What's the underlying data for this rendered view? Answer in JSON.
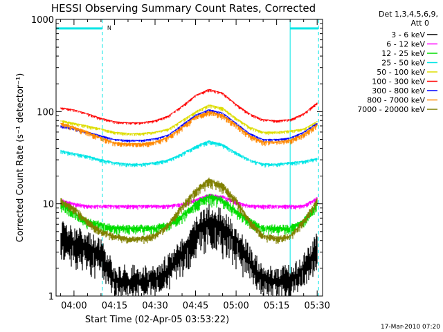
{
  "chart_data": {
    "type": "line",
    "title": "HESSI Observing Summary Count Rates, Corrected",
    "xlabel": "Start Time (02-Apr-05 03:53:22)",
    "ylabel": "Corrected Count Rate (s⁻¹ detector⁻¹)",
    "x_range": [
      "03:53:22",
      "05:32:00"
    ],
    "y_scale": "log",
    "ylim": [
      1,
      1000
    ],
    "x_ticks": [
      {
        "t": "04:00",
        "label": "04:00"
      },
      {
        "t": "04:15",
        "label": "04:15"
      },
      {
        "t": "04:30",
        "label": "04:30"
      },
      {
        "t": "04:45",
        "label": "04:45"
      },
      {
        "t": "05:00",
        "label": "05:00"
      },
      {
        "t": "05:15",
        "label": "05:15"
      },
      {
        "t": "05:30",
        "label": "05:30"
      }
    ],
    "y_ticks": [
      {
        "v": 1,
        "label": "1"
      },
      {
        "v": 10,
        "label": "10"
      },
      {
        "v": 100,
        "label": "100"
      },
      {
        "v": 1000,
        "label": "1000"
      }
    ],
    "legend_header": [
      "Det 1,3,4,5,6,9,",
      "Att 0"
    ],
    "legend_position": "right",
    "flag_label": "N",
    "flag_color": "#00e5e5",
    "night_bars": [
      {
        "start": "03:53:22",
        "end": "04:10:30"
      },
      {
        "start": "05:20:00",
        "end": "05:30:30"
      }
    ],
    "markers": [
      {
        "t": "04:10:30",
        "style": "dashed"
      },
      {
        "t": "05:20:00",
        "style": "solid"
      },
      {
        "t": "05:30:30",
        "style": "dashed"
      }
    ],
    "series": [
      {
        "name": "3 - 6 keV",
        "color": "#000000",
        "x": [
          "03:55",
          "04:00",
          "04:05",
          "04:10",
          "04:15",
          "04:20",
          "04:25",
          "04:30",
          "04:35",
          "04:40",
          "04:45",
          "04:50",
          "04:55",
          "05:00",
          "05:05",
          "05:10",
          "05:15",
          "05:20",
          "05:25",
          "05:30"
        ],
        "y": [
          4.5,
          4,
          3.5,
          3,
          1.5,
          1.5,
          1.5,
          1.5,
          2,
          3,
          5,
          7,
          6,
          4,
          2.5,
          1.5,
          1.5,
          1.5,
          2,
          3.5
        ]
      },
      {
        "name": "6 - 12 keV",
        "color": "#ff00ff",
        "x": [
          "03:55",
          "04:00",
          "04:05",
          "04:10",
          "04:15",
          "04:20",
          "04:25",
          "04:30",
          "04:35",
          "04:40",
          "04:45",
          "04:50",
          "04:55",
          "05:00",
          "05:05",
          "05:10",
          "05:15",
          "05:20",
          "05:25",
          "05:30"
        ],
        "y": [
          11,
          10,
          9.5,
          9.5,
          9.5,
          9.5,
          9.5,
          9.5,
          9.5,
          10,
          11,
          12.5,
          12,
          10.5,
          9.5,
          9.5,
          9.5,
          9.5,
          9.5,
          11.5
        ]
      },
      {
        "name": "12 - 25 keV",
        "color": "#00dd00",
        "x": [
          "03:55",
          "04:00",
          "04:05",
          "04:10",
          "04:15",
          "04:20",
          "04:25",
          "04:30",
          "04:35",
          "04:40",
          "04:45",
          "04:50",
          "04:55",
          "05:00",
          "05:05",
          "05:10",
          "05:15",
          "05:20",
          "05:25",
          "05:30"
        ],
        "y": [
          10,
          8,
          6.5,
          6,
          5.5,
          5.5,
          5.5,
          5.5,
          6,
          7.5,
          10,
          12,
          11,
          8.5,
          6.5,
          5.5,
          5.5,
          5.5,
          6.5,
          10
        ]
      },
      {
        "name": "25 - 50 keV",
        "color": "#00e5e5",
        "x": [
          "03:55",
          "04:00",
          "04:05",
          "04:10",
          "04:15",
          "04:20",
          "04:25",
          "04:30",
          "04:35",
          "04:40",
          "04:45",
          "04:50",
          "04:55",
          "05:00",
          "05:05",
          "05:10",
          "05:15",
          "05:20",
          "05:25",
          "05:30"
        ],
        "y": [
          38,
          35,
          33,
          30,
          28,
          27,
          27,
          28,
          30,
          35,
          42,
          48,
          44,
          36,
          30,
          27,
          27,
          28,
          29,
          31
        ]
      },
      {
        "name": "50 - 100 keV",
        "color": "#dddd00",
        "x": [
          "03:55",
          "04:00",
          "04:05",
          "04:10",
          "04:15",
          "04:20",
          "04:25",
          "04:30",
          "04:35",
          "04:40",
          "04:45",
          "04:50",
          "04:55",
          "05:00",
          "05:05",
          "05:10",
          "05:15",
          "05:20",
          "05:25",
          "05:30"
        ],
        "y": [
          80,
          75,
          70,
          65,
          60,
          58,
          58,
          60,
          65,
          80,
          100,
          118,
          110,
          85,
          68,
          60,
          60,
          62,
          65,
          78
        ]
      },
      {
        "name": "100 - 300 keV",
        "color": "#ff0000",
        "x": [
          "03:55",
          "04:00",
          "04:05",
          "04:10",
          "04:15",
          "04:20",
          "04:25",
          "04:30",
          "04:35",
          "04:40",
          "04:45",
          "04:50",
          "04:55",
          "05:00",
          "05:05",
          "05:10",
          "05:15",
          "05:20",
          "05:25",
          "05:30"
        ],
        "y": [
          110,
          105,
          95,
          85,
          78,
          76,
          76,
          80,
          90,
          115,
          150,
          175,
          160,
          120,
          95,
          82,
          80,
          82,
          95,
          125
        ]
      },
      {
        "name": "300 - 800 keV",
        "color": "#0000ff",
        "x": [
          "03:55",
          "04:00",
          "04:05",
          "04:10",
          "04:15",
          "04:20",
          "04:25",
          "04:30",
          "04:35",
          "04:40",
          "04:45",
          "04:50",
          "04:55",
          "05:00",
          "05:05",
          "05:10",
          "05:15",
          "05:20",
          "05:25",
          "05:30"
        ],
        "y": [
          70,
          65,
          60,
          55,
          50,
          49,
          49,
          51,
          56,
          72,
          92,
          105,
          97,
          75,
          58,
          50,
          50,
          52,
          60,
          75
        ]
      },
      {
        "name": "800 - 7000 keV",
        "color": "#ff8800",
        "x": [
          "03:55",
          "04:00",
          "04:05",
          "04:10",
          "04:15",
          "04:20",
          "04:25",
          "04:30",
          "04:35",
          "04:40",
          "04:45",
          "04:50",
          "04:55",
          "05:00",
          "05:05",
          "05:10",
          "05:15",
          "05:20",
          "05:25",
          "05:30"
        ],
        "y": [
          75,
          68,
          60,
          52,
          46,
          45,
          45,
          47,
          53,
          68,
          88,
          100,
          92,
          72,
          55,
          47,
          47,
          49,
          57,
          72
        ]
      },
      {
        "name": "7000 - 20000 keV",
        "color": "#808000",
        "x": [
          "03:55",
          "04:00",
          "04:05",
          "04:10",
          "04:15",
          "04:20",
          "04:25",
          "04:30",
          "04:35",
          "04:40",
          "04:45",
          "04:50",
          "04:55",
          "05:00",
          "05:05",
          "05:10",
          "05:15",
          "05:20",
          "05:25",
          "05:30"
        ],
        "y": [
          11,
          9,
          6.5,
          5,
          4.5,
          4.2,
          4.2,
          4.5,
          6,
          9.5,
          14,
          18,
          16,
          11,
          6.5,
          4.5,
          4.2,
          4.5,
          6.5,
          11
        ]
      }
    ]
  },
  "footer": {
    "timestamp": "17-Mar-2010 07:20"
  }
}
